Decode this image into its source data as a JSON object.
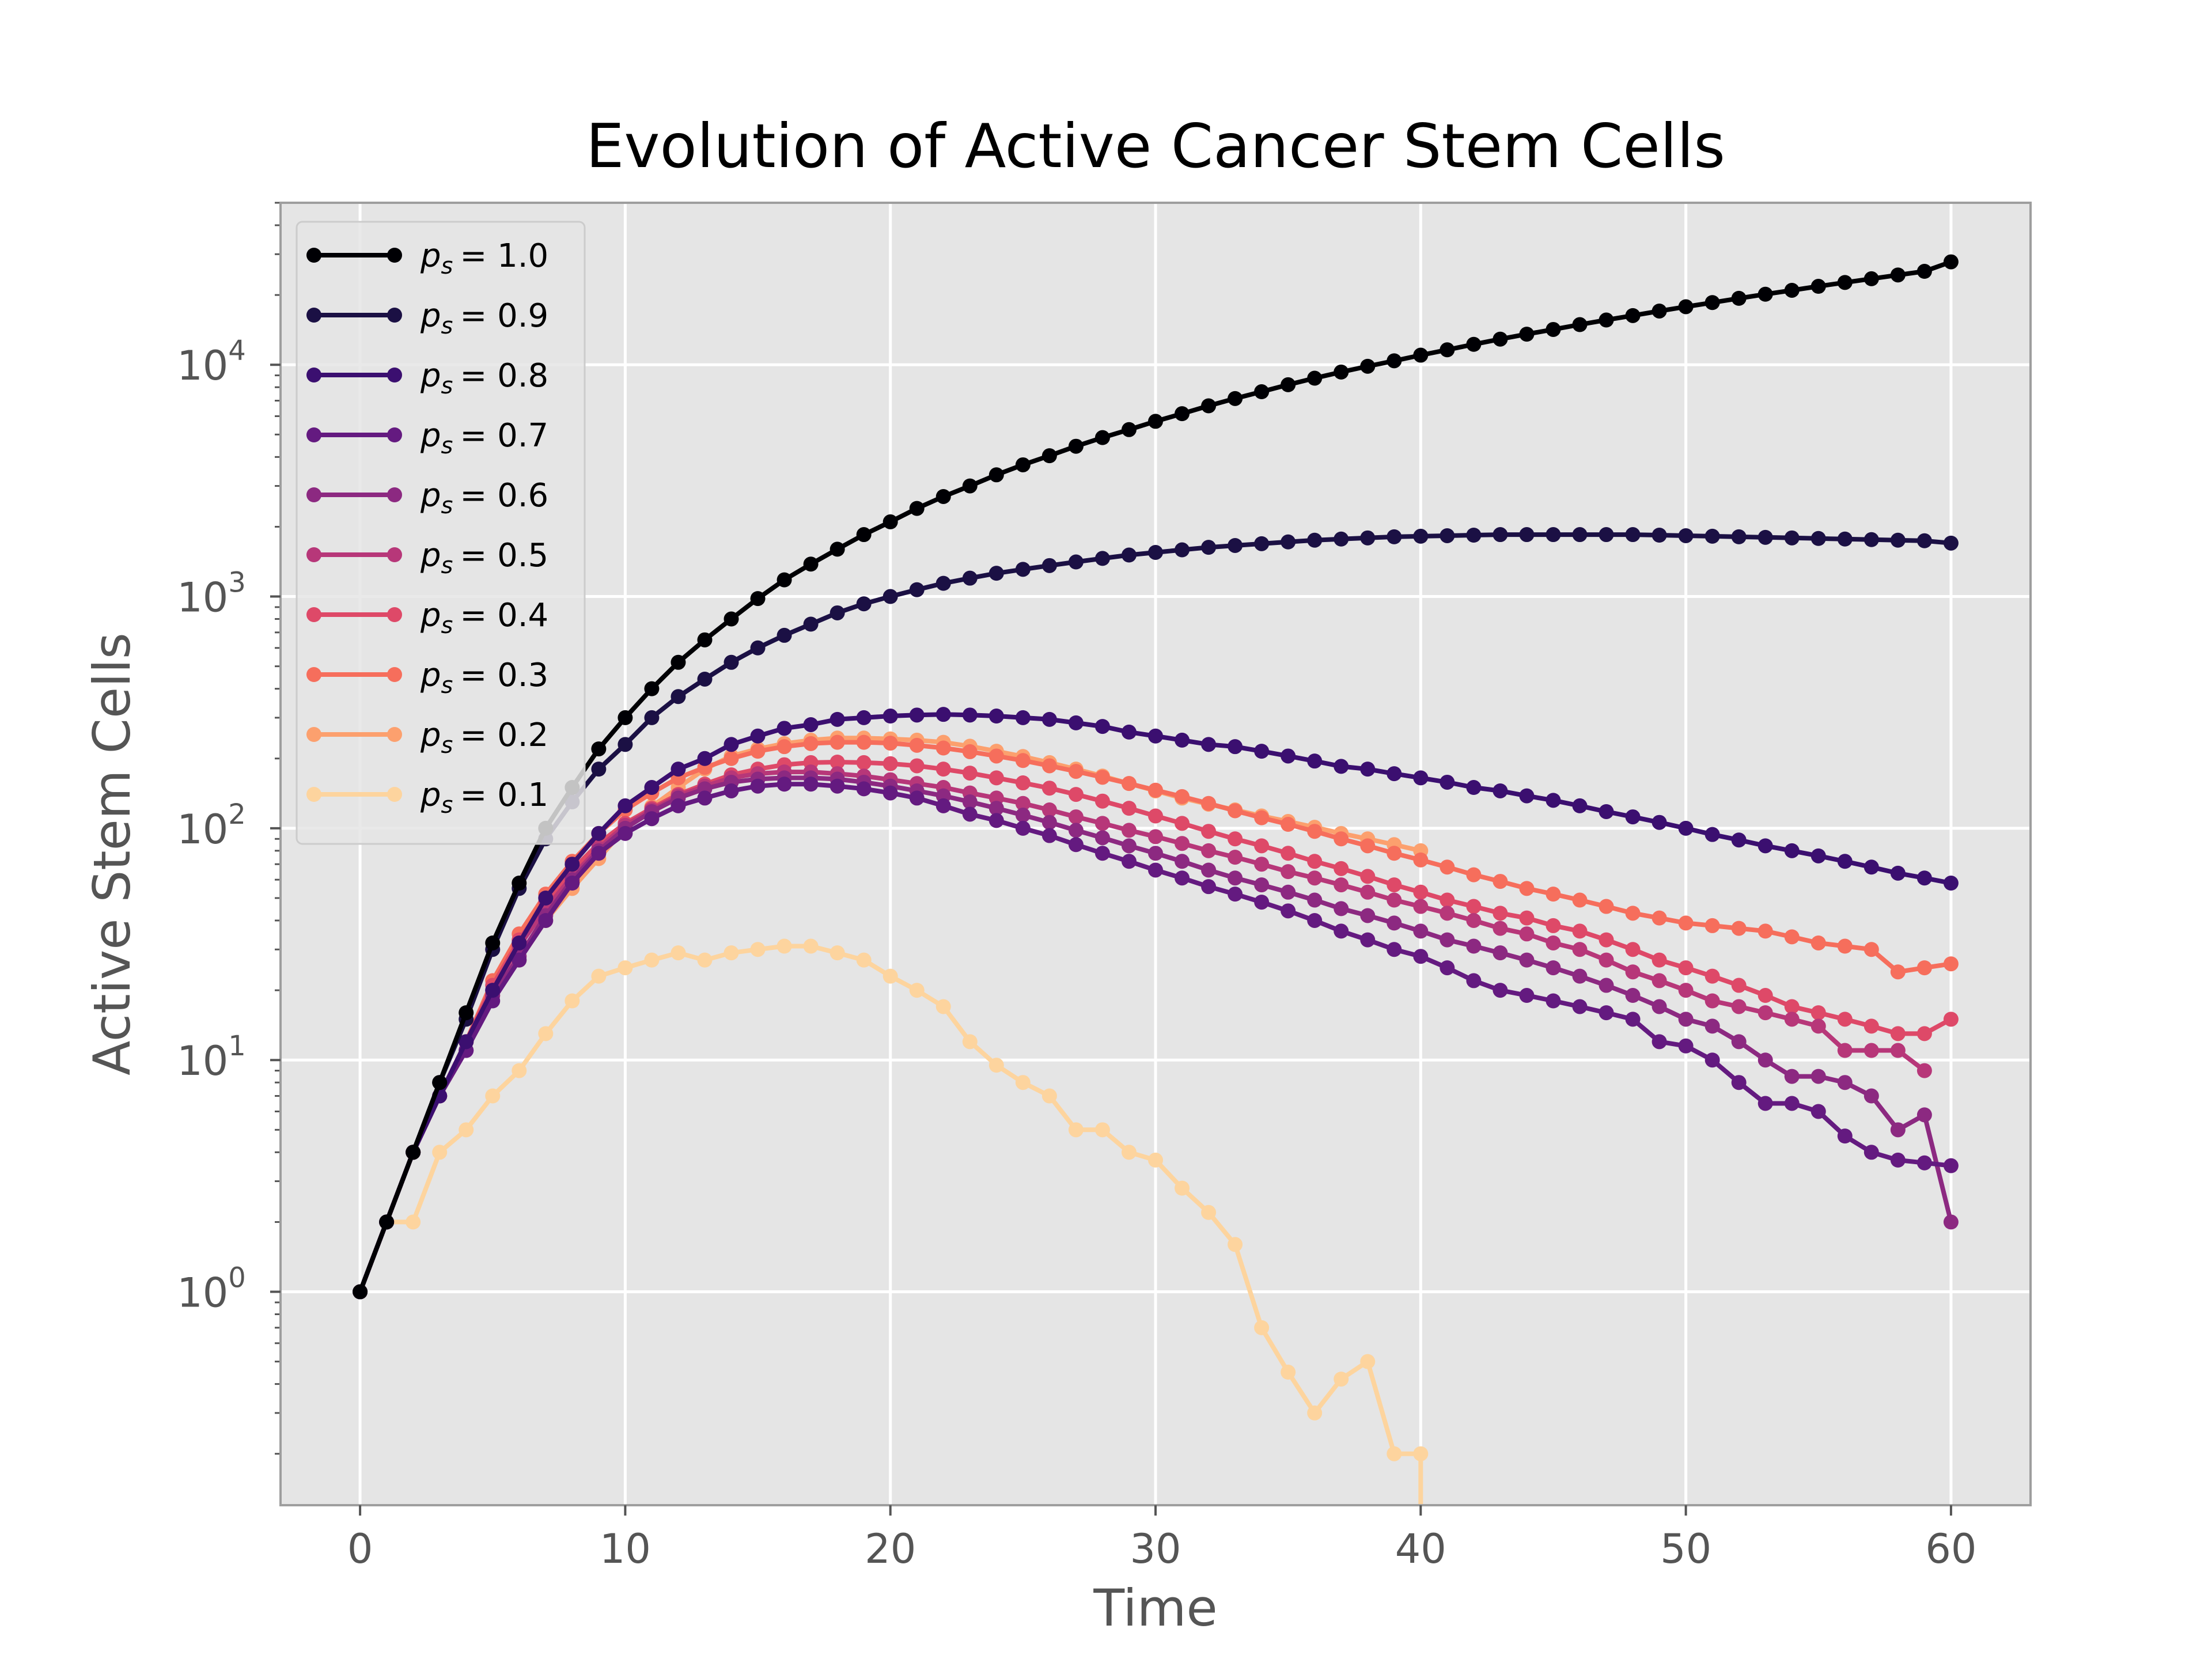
{
  "chart_data": {
    "type": "line",
    "title": "Evolution of Active Cancer Stem Cells",
    "xlabel": "Time",
    "ylabel": "Active Stem Cells",
    "xlim": [
      -3,
      63
    ],
    "ylim": [
      0.12,
      50000
    ],
    "yscale": "log",
    "grid": true,
    "legend_position": "upper-left",
    "xticks": [
      0,
      10,
      20,
      30,
      40,
      50,
      60
    ],
    "yticks": [
      1,
      10,
      100,
      1000,
      10000
    ],
    "series": [
      {
        "name": "p_s = 1.0",
        "label_var": "p",
        "label_sub": "s",
        "label_value": "= 1.0",
        "color": "#000004",
        "x": [
          0,
          1,
          2,
          3,
          4,
          5,
          6,
          7,
          8,
          9,
          10,
          11,
          12,
          13,
          14,
          15,
          16,
          17,
          18,
          19,
          20,
          21,
          22,
          23,
          24,
          25,
          26,
          27,
          28,
          29,
          30,
          31,
          32,
          33,
          34,
          35,
          36,
          37,
          38,
          39,
          40,
          41,
          42,
          43,
          44,
          45,
          46,
          47,
          48,
          49,
          50,
          51,
          52,
          53,
          54,
          55,
          56,
          57,
          58,
          59,
          60
        ],
        "y": [
          1,
          2,
          4,
          8,
          16,
          32,
          58,
          100,
          150,
          220,
          300,
          400,
          520,
          650,
          800,
          980,
          1180,
          1380,
          1600,
          1850,
          2100,
          2400,
          2700,
          3000,
          3350,
          3700,
          4050,
          4450,
          4850,
          5250,
          5700,
          6150,
          6650,
          7150,
          7650,
          8200,
          8750,
          9300,
          9850,
          10400,
          11000,
          11600,
          12250,
          12900,
          13550,
          14200,
          14900,
          15600,
          16300,
          17050,
          17800,
          18550,
          19350,
          20150,
          20950,
          21800,
          22650,
          23500,
          24400,
          25300,
          27800
        ]
      },
      {
        "name": "p_s = 0.9",
        "label_var": "p",
        "label_sub": "s",
        "label_value": "= 0.9",
        "color": "#1b1044",
        "x": [
          0,
          1,
          2,
          3,
          4,
          5,
          6,
          7,
          8,
          9,
          10,
          11,
          12,
          13,
          14,
          15,
          16,
          17,
          18,
          19,
          20,
          21,
          22,
          23,
          24,
          25,
          26,
          27,
          28,
          29,
          30,
          31,
          32,
          33,
          34,
          35,
          36,
          37,
          38,
          39,
          40,
          41,
          42,
          43,
          44,
          45,
          46,
          47,
          48,
          49,
          50,
          51,
          52,
          53,
          54,
          55,
          56,
          57,
          58,
          59,
          60
        ],
        "y": [
          1,
          2,
          4,
          8,
          15,
          30,
          55,
          90,
          130,
          180,
          230,
          300,
          370,
          440,
          520,
          600,
          680,
          760,
          850,
          930,
          1000,
          1070,
          1140,
          1200,
          1260,
          1310,
          1360,
          1410,
          1460,
          1510,
          1550,
          1590,
          1630,
          1660,
          1690,
          1720,
          1750,
          1770,
          1790,
          1810,
          1820,
          1830,
          1840,
          1850,
          1850,
          1850,
          1850,
          1850,
          1850,
          1840,
          1830,
          1820,
          1810,
          1800,
          1790,
          1780,
          1770,
          1760,
          1750,
          1740,
          1700
        ]
      },
      {
        "name": "p_s = 0.8",
        "label_var": "p",
        "label_sub": "s",
        "label_value": "= 0.8",
        "color": "#3b0f70",
        "x": [
          0,
          1,
          2,
          3,
          4,
          5,
          6,
          7,
          8,
          9,
          10,
          11,
          12,
          13,
          14,
          15,
          16,
          17,
          18,
          19,
          20,
          21,
          22,
          23,
          24,
          25,
          26,
          27,
          28,
          29,
          30,
          31,
          32,
          33,
          34,
          35,
          36,
          37,
          38,
          39,
          40,
          41,
          42,
          43,
          44,
          45,
          46,
          47,
          48,
          49,
          50,
          51,
          52,
          53,
          54,
          55,
          56,
          57,
          58,
          59,
          60
        ],
        "y": [
          1,
          2,
          4,
          7,
          12,
          20,
          32,
          50,
          70,
          95,
          125,
          150,
          180,
          200,
          230,
          250,
          270,
          280,
          295,
          300,
          305,
          308,
          310,
          308,
          305,
          300,
          295,
          285,
          275,
          260,
          250,
          240,
          230,
          225,
          215,
          205,
          195,
          185,
          180,
          172,
          165,
          158,
          150,
          145,
          138,
          132,
          125,
          118,
          112,
          106,
          100,
          94,
          89,
          84,
          80,
          76,
          72,
          68,
          64,
          61,
          58
        ]
      },
      {
        "name": "p_s = 0.7",
        "label_var": "p",
        "label_sub": "s",
        "label_value": "= 0.7",
        "color": "#641a80",
        "x": [
          0,
          1,
          2,
          3,
          4,
          5,
          6,
          7,
          8,
          9,
          10,
          11,
          12,
          13,
          14,
          15,
          16,
          17,
          18,
          19,
          20,
          21,
          22,
          23,
          24,
          25,
          26,
          27,
          28,
          29,
          30,
          31,
          32,
          33,
          34,
          35,
          36,
          37,
          38,
          39,
          40,
          41,
          42,
          43,
          44,
          45,
          46,
          47,
          48,
          49,
          50,
          51,
          52,
          53,
          54,
          55,
          56,
          57,
          58,
          59,
          60
        ],
        "y": [
          1,
          2,
          4,
          7,
          11,
          18,
          27,
          40,
          58,
          78,
          95,
          110,
          125,
          135,
          145,
          152,
          155,
          155,
          152,
          148,
          142,
          135,
          125,
          115,
          108,
          100,
          93,
          85,
          78,
          72,
          66,
          61,
          56,
          52,
          48,
          44,
          40,
          36,
          33,
          30,
          28,
          25,
          22,
          20,
          19,
          18,
          17,
          16,
          15,
          12,
          11.5,
          10,
          8,
          6.5,
          6.5,
          6,
          4.7,
          4,
          3.7,
          3.6,
          3.5
        ]
      },
      {
        "name": "p_s = 0.6",
        "label_var": "p",
        "label_sub": "s",
        "label_value": "= 0.6",
        "color": "#8c2981",
        "x": [
          0,
          1,
          2,
          3,
          4,
          5,
          6,
          7,
          8,
          9,
          10,
          11,
          12,
          13,
          14,
          15,
          16,
          17,
          18,
          19,
          20,
          21,
          22,
          23,
          24,
          25,
          26,
          27,
          28,
          29,
          30,
          31,
          32,
          33,
          34,
          35,
          36,
          37,
          38,
          39,
          40,
          41,
          42,
          43,
          44,
          45,
          46,
          47,
          48,
          49,
          50,
          51,
          52,
          53,
          54,
          55,
          56,
          57,
          58,
          59,
          60
        ],
        "y": [
          1,
          2,
          4,
          7,
          11,
          19,
          28,
          42,
          60,
          80,
          100,
          118,
          135,
          148,
          158,
          163,
          165,
          165,
          163,
          158,
          152,
          145,
          138,
          130,
          122,
          114,
          106,
          98,
          91,
          84,
          78,
          72,
          66,
          61,
          57,
          53,
          49,
          45,
          42,
          39,
          36,
          33,
          31,
          29,
          27,
          25,
          23,
          21,
          19,
          17,
          15,
          14,
          12,
          10,
          8.5,
          8.5,
          8,
          7,
          5,
          5.8,
          2
        ]
      },
      {
        "name": "p_s = 0.5",
        "label_var": "p",
        "label_sub": "s",
        "label_value": "= 0.5",
        "color": "#b73779",
        "x": [
          0,
          1,
          2,
          3,
          4,
          5,
          6,
          7,
          8,
          9,
          10,
          11,
          12,
          13,
          14,
          15,
          16,
          17,
          18,
          19,
          20,
          21,
          22,
          23,
          24,
          25,
          26,
          27,
          28,
          29,
          30,
          31,
          32,
          33,
          34,
          35,
          36,
          37,
          38,
          39,
          40,
          41,
          42,
          43,
          44,
          45,
          46,
          47,
          48,
          49,
          50,
          51,
          52,
          53,
          54,
          55,
          56,
          57,
          58,
          59
        ],
        "y": [
          1,
          2,
          4,
          7,
          12,
          20,
          31,
          45,
          62,
          82,
          103,
          120,
          138,
          152,
          165,
          172,
          175,
          175,
          172,
          168,
          162,
          156,
          150,
          142,
          135,
          128,
          120,
          112,
          105,
          98,
          92,
          86,
          80,
          75,
          70,
          65,
          61,
          57,
          53,
          49,
          46,
          43,
          40,
          37,
          35,
          32,
          30,
          27,
          24,
          22,
          20,
          18,
          17,
          16,
          15,
          14,
          11,
          11,
          11,
          9
        ]
      },
      {
        "name": "p_s = 0.4",
        "label_var": "p",
        "label_sub": "s",
        "label_value": "= 0.4",
        "color": "#de4968",
        "x": [
          0,
          1,
          2,
          3,
          4,
          5,
          6,
          7,
          8,
          9,
          10,
          11,
          12,
          13,
          14,
          15,
          16,
          17,
          18,
          19,
          20,
          21,
          22,
          23,
          24,
          25,
          26,
          27,
          28,
          29,
          30,
          31,
          32,
          33,
          34,
          35,
          36,
          37,
          38,
          39,
          40,
          41,
          42,
          43,
          44,
          45,
          46,
          47,
          48,
          49,
          50,
          51,
          52,
          53,
          54,
          55,
          56,
          57,
          58,
          59,
          60
        ],
        "y": [
          1,
          2,
          4,
          7,
          12,
          21,
          33,
          48,
          66,
          86,
          105,
          122,
          140,
          155,
          170,
          180,
          188,
          192,
          193,
          192,
          190,
          186,
          180,
          173,
          165,
          157,
          149,
          140,
          131,
          122,
          113,
          105,
          97,
          90,
          84,
          78,
          72,
          67,
          62,
          57,
          53,
          49,
          46,
          43,
          41,
          38,
          36,
          33,
          30,
          27,
          25,
          23,
          21,
          19,
          17,
          16,
          15,
          14,
          13,
          13,
          15
        ]
      },
      {
        "name": "p_s = 0.3",
        "label_var": "p",
        "label_sub": "s",
        "label_value": "= 0.3",
        "color": "#f66e5c",
        "x": [
          0,
          1,
          2,
          3,
          4,
          5,
          6,
          7,
          8,
          9,
          10,
          11,
          12,
          13,
          14,
          15,
          16,
          17,
          18,
          19,
          20,
          21,
          22,
          23,
          24,
          25,
          26,
          27,
          28,
          29,
          30,
          31,
          32,
          33,
          34,
          35,
          36,
          37,
          38,
          39,
          40,
          41,
          42,
          43,
          44,
          45,
          46,
          47,
          48,
          49,
          50,
          51,
          52,
          53,
          54,
          55,
          56,
          57,
          58,
          59,
          60
        ],
        "y": [
          1,
          2,
          4,
          7,
          12,
          22,
          35,
          52,
          72,
          95,
          120,
          142,
          165,
          183,
          200,
          215,
          225,
          232,
          235,
          235,
          233,
          228,
          222,
          214,
          205,
          196,
          186,
          176,
          166,
          156,
          146,
          137,
          128,
          119,
          111,
          104,
          97,
          90,
          84,
          78,
          73,
          68,
          63,
          59,
          55,
          52,
          49,
          46,
          43,
          41,
          39,
          38,
          37,
          36,
          34,
          32,
          31,
          30,
          24,
          25,
          26
        ]
      },
      {
        "name": "p_s = 0.2",
        "label_var": "p",
        "label_sub": "s",
        "label_value": "= 0.2",
        "color": "#fca06e",
        "x": [
          0,
          1,
          2,
          3,
          4,
          5,
          6,
          7,
          8,
          9,
          10,
          11,
          12,
          13,
          14,
          15,
          16,
          17,
          18,
          19,
          20,
          21,
          22,
          23,
          24,
          25,
          26,
          27,
          28,
          29,
          30,
          31,
          32,
          33,
          34,
          35,
          36,
          37,
          38,
          39,
          40
        ],
        "y": [
          1,
          2,
          4,
          7,
          12,
          19,
          27,
          40,
          55,
          74,
          100,
          124,
          150,
          180,
          205,
          220,
          232,
          240,
          245,
          245,
          243,
          240,
          235,
          226,
          215,
          204,
          192,
          180,
          168,
          156,
          145,
          135,
          127,
          120,
          113,
          107,
          101,
          95,
          90,
          85,
          80
        ]
      },
      {
        "name": "p_s = 0.1",
        "label_var": "p",
        "label_sub": "s",
        "label_value": "= 0.1",
        "color": "#fdd49e",
        "x": [
          0,
          1,
          2,
          3,
          4,
          5,
          6,
          7,
          8,
          9,
          10,
          11,
          12,
          13,
          14,
          15,
          16,
          17,
          18,
          19,
          20,
          21,
          22,
          23,
          24,
          25,
          26,
          27,
          28,
          29,
          30,
          31,
          32,
          33,
          34,
          35,
          36,
          37,
          38,
          39,
          40
        ],
        "y": [
          1,
          2,
          2,
          4,
          5,
          7,
          9,
          13,
          18,
          23,
          25,
          27,
          29,
          27,
          29,
          30,
          31,
          31,
          29,
          27,
          23,
          20,
          17,
          12,
          9.5,
          8,
          7,
          5,
          5,
          4,
          3.7,
          2.8,
          2.2,
          1.6,
          0.7,
          0.45,
          0.3,
          0.42,
          0.5,
          0.2,
          0.2
        ]
      }
    ]
  }
}
